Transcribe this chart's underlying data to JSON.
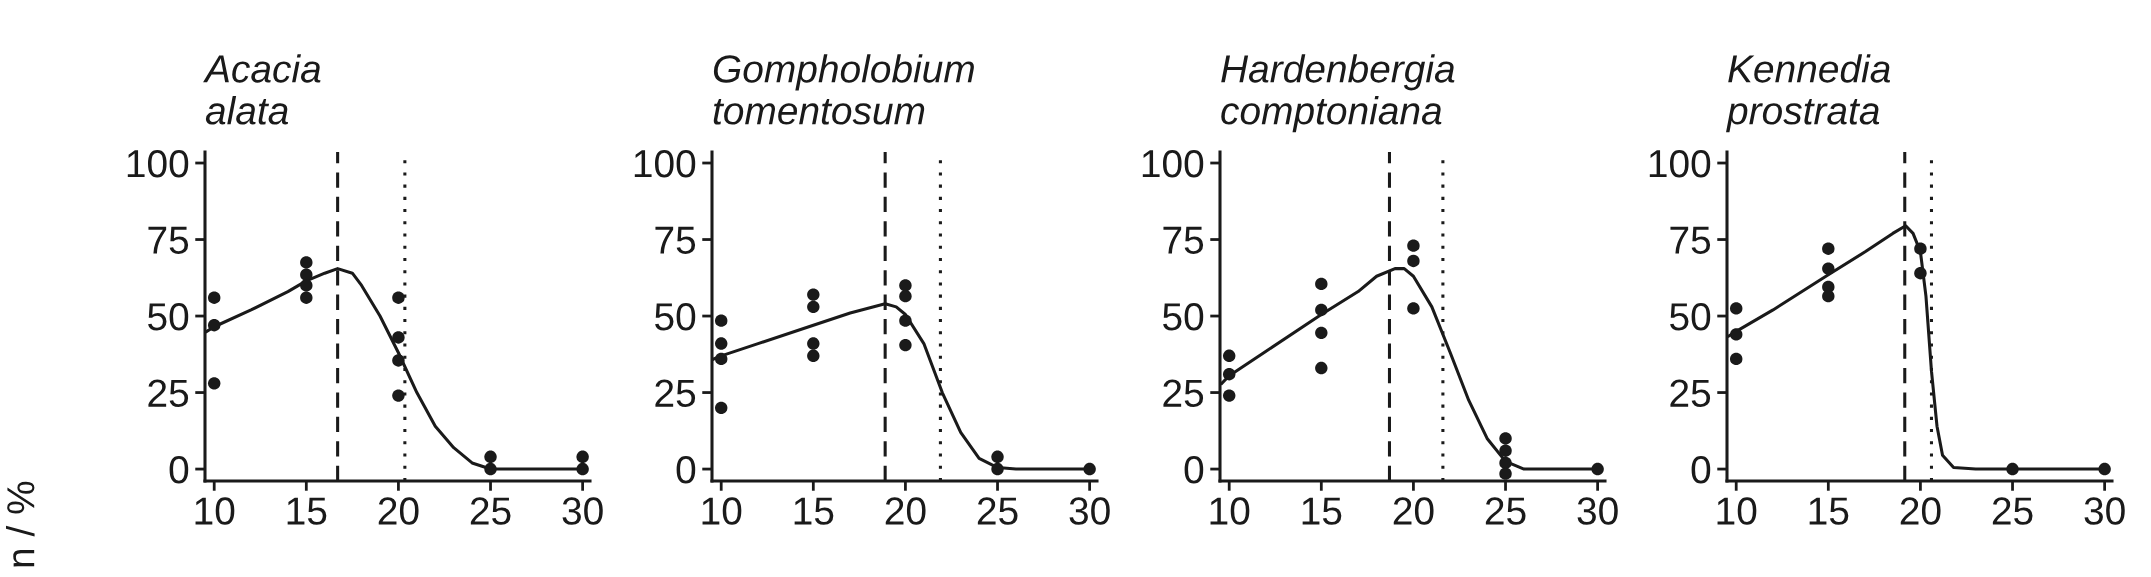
{
  "chart_data": [
    {
      "type": "scatter",
      "title": "Acacia\nalata",
      "ylabel": "n / %",
      "xlim": [
        9.5,
        30.4
      ],
      "ylim": [
        -3.9,
        103.6
      ],
      "xticks": [
        10,
        15,
        20,
        25,
        30
      ],
      "yticks": [
        0,
        25,
        50,
        75,
        100
      ],
      "grid": false,
      "legend": false,
      "series": [
        {
          "marker": "circle",
          "color": "#1a1a1a",
          "x": [
            10,
            10,
            10,
            15,
            15,
            15,
            15,
            20,
            20,
            20,
            20,
            25,
            25,
            30,
            30
          ],
          "values": [
            56,
            47,
            28,
            67.5,
            63.5,
            60,
            56,
            56,
            43,
            35.5,
            24,
            4,
            0,
            4,
            0
          ]
        },
        {
          "type": "line",
          "color": "#1a1a1a",
          "line_style": "solid",
          "x": [
            9.6,
            10,
            12,
            14,
            15,
            16,
            16.7,
            17.5,
            18,
            19,
            20,
            21,
            22,
            23,
            24,
            25,
            30
          ],
          "values": [
            45,
            46.5,
            52,
            58,
            61.5,
            64,
            65.5,
            64,
            60,
            50,
            38,
            25,
            14,
            7,
            2,
            0,
            0
          ]
        }
      ],
      "ref_lines": [
        {
          "axis": "x",
          "value": 16.7,
          "line_style": "dashed",
          "color": "#1a1a1a"
        },
        {
          "axis": "x",
          "value": 20.35,
          "line_style": "dotted",
          "color": "#1a1a1a"
        }
      ]
    },
    {
      "type": "scatter",
      "title": "Gompholobium\ntomentosum",
      "xlim": [
        9.5,
        30.4
      ],
      "ylim": [
        -3.9,
        103.6
      ],
      "xticks": [
        10,
        15,
        20,
        25,
        30
      ],
      "yticks": [
        0,
        25,
        50,
        75,
        100
      ],
      "grid": false,
      "legend": false,
      "series": [
        {
          "marker": "circle",
          "color": "#1a1a1a",
          "x": [
            10,
            10,
            10,
            10,
            15,
            15,
            15,
            15,
            20,
            20,
            20,
            20,
            25,
            25,
            30
          ],
          "values": [
            48.5,
            41,
            36,
            20,
            57,
            53,
            41,
            37,
            60,
            56.5,
            48.5,
            40.5,
            4,
            0,
            0
          ]
        },
        {
          "type": "line",
          "color": "#1a1a1a",
          "line_style": "solid",
          "x": [
            9.6,
            10,
            12,
            15,
            17,
            18.9,
            19.5,
            20,
            21,
            22,
            23,
            24,
            25,
            26,
            30
          ],
          "values": [
            36,
            37,
            41,
            47,
            51,
            54,
            53,
            50.5,
            41,
            25,
            12,
            3.5,
            0.5,
            0,
            0
          ]
        }
      ],
      "ref_lines": [
        {
          "axis": "x",
          "value": 18.9,
          "line_style": "dashed",
          "color": "#1a1a1a"
        },
        {
          "axis": "x",
          "value": 21.9,
          "line_style": "dotted",
          "color": "#1a1a1a"
        }
      ]
    },
    {
      "type": "scatter",
      "title": "Hardenbergia\ncomptoniana",
      "xlim": [
        9.5,
        30.4
      ],
      "ylim": [
        -3.9,
        103.6
      ],
      "xticks": [
        10,
        15,
        20,
        25,
        30
      ],
      "yticks": [
        0,
        25,
        50,
        75,
        100
      ],
      "grid": false,
      "legend": false,
      "series": [
        {
          "marker": "circle",
          "color": "#1a1a1a",
          "x": [
            10,
            10,
            10,
            15,
            15,
            15,
            15,
            20,
            20,
            20,
            25,
            25,
            25,
            25,
            30
          ],
          "values": [
            37,
            31,
            24,
            60.5,
            52,
            44.5,
            33,
            73,
            68,
            52.5,
            10,
            6,
            2,
            -1.5,
            0
          ]
        },
        {
          "type": "line",
          "color": "#1a1a1a",
          "line_style": "solid",
          "x": [
            9.6,
            10,
            12,
            15,
            17,
            18,
            19,
            19.5,
            20,
            21,
            22,
            23,
            24,
            25,
            26,
            30
          ],
          "values": [
            28,
            30.5,
            38.5,
            50.5,
            58,
            63,
            65.5,
            65.5,
            63,
            53,
            38,
            22.5,
            10,
            2.5,
            0,
            0
          ]
        }
      ],
      "ref_lines": [
        {
          "axis": "x",
          "value": 18.7,
          "line_style": "dashed",
          "color": "#1a1a1a"
        },
        {
          "axis": "x",
          "value": 21.6,
          "line_style": "dotted",
          "color": "#1a1a1a"
        }
      ]
    },
    {
      "type": "scatter",
      "title": "Kennedia\nprostrata",
      "xlim": [
        9.5,
        30.4
      ],
      "ylim": [
        -3.9,
        103.6
      ],
      "xticks": [
        10,
        15,
        20,
        25,
        30
      ],
      "yticks": [
        0,
        25,
        50,
        75,
        100
      ],
      "grid": false,
      "legend": false,
      "series": [
        {
          "marker": "circle",
          "color": "#1a1a1a",
          "x": [
            10,
            10,
            10,
            15,
            15,
            15,
            15,
            20,
            20,
            25,
            30
          ],
          "values": [
            52.5,
            44,
            36,
            72,
            65.5,
            59.5,
            56.5,
            72,
            64,
            0,
            0
          ]
        },
        {
          "type": "line",
          "color": "#1a1a1a",
          "line_style": "solid",
          "x": [
            9.6,
            10,
            12,
            15,
            17,
            18.5,
            19.2,
            19.6,
            20,
            20.3,
            20.6,
            20.9,
            21.2,
            21.8,
            23,
            30
          ],
          "values": [
            43.5,
            45,
            52,
            63.5,
            71,
            77,
            79.5,
            77,
            71,
            56.5,
            32,
            14,
            4.5,
            0.5,
            0,
            0
          ]
        }
      ],
      "ref_lines": [
        {
          "axis": "x",
          "value": 19.15,
          "line_style": "dashed",
          "color": "#1a1a1a"
        },
        {
          "axis": "x",
          "value": 20.6,
          "line_style": "dotted",
          "color": "#1a1a1a"
        }
      ]
    }
  ]
}
